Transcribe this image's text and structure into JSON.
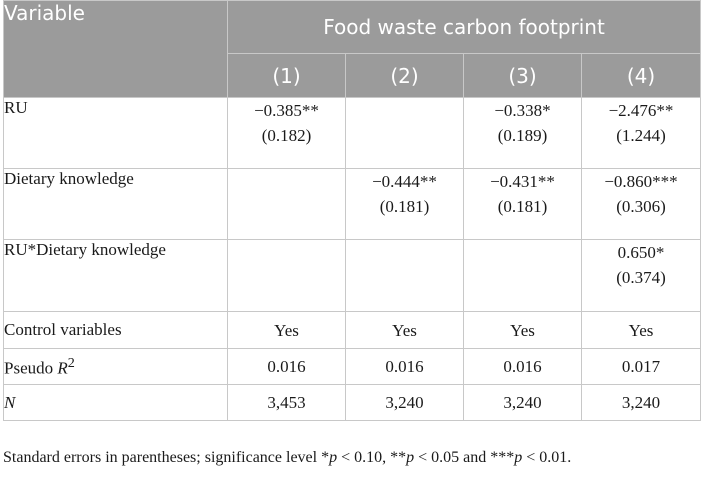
{
  "header": {
    "variable_label": "Variable",
    "group_label": "Food waste carbon footprint",
    "columns": [
      "(1)",
      "(2)",
      "(3)",
      "(4)"
    ]
  },
  "rows": [
    {
      "label": "RU",
      "cells": [
        {
          "est": "−0.385**",
          "se": "(0.182)"
        },
        {
          "est": "",
          "se": ""
        },
        {
          "est": "−0.338*",
          "se": "(0.189)"
        },
        {
          "est": "−2.476**",
          "se": "(1.244)"
        }
      ]
    },
    {
      "label": "Dietary knowledge",
      "cells": [
        {
          "est": "",
          "se": ""
        },
        {
          "est": "−0.444**",
          "se": "(0.181)"
        },
        {
          "est": "−0.431**",
          "se": "(0.181)"
        },
        {
          "est": "−0.860***",
          "se": "(0.306)"
        }
      ]
    },
    {
      "label": "RU*Dietary knowledge",
      "cells": [
        {
          "est": "",
          "se": ""
        },
        {
          "est": "",
          "se": ""
        },
        {
          "est": "",
          "se": ""
        },
        {
          "est": "0.650*",
          "se": "(0.374)"
        }
      ]
    },
    {
      "label": "Control variables",
      "cells": [
        "Yes",
        "Yes",
        "Yes",
        "Yes"
      ]
    },
    {
      "label_prefix": "Pseudo ",
      "label_italic": "R",
      "label_sup": "2",
      "cells": [
        "0.016",
        "0.016",
        "0.016",
        "0.017"
      ]
    },
    {
      "label_italic": "N",
      "cells": [
        "3,453",
        "3,240",
        "3,240",
        "3,240"
      ]
    }
  ],
  "note": {
    "part1": "Standard errors in parentheses; significance level *",
    "p1": "p",
    "part2": " < 0.10, **",
    "p2": "p",
    "part3": " < 0.05 and ***",
    "p3": "p",
    "part4": " < 0.01."
  }
}
